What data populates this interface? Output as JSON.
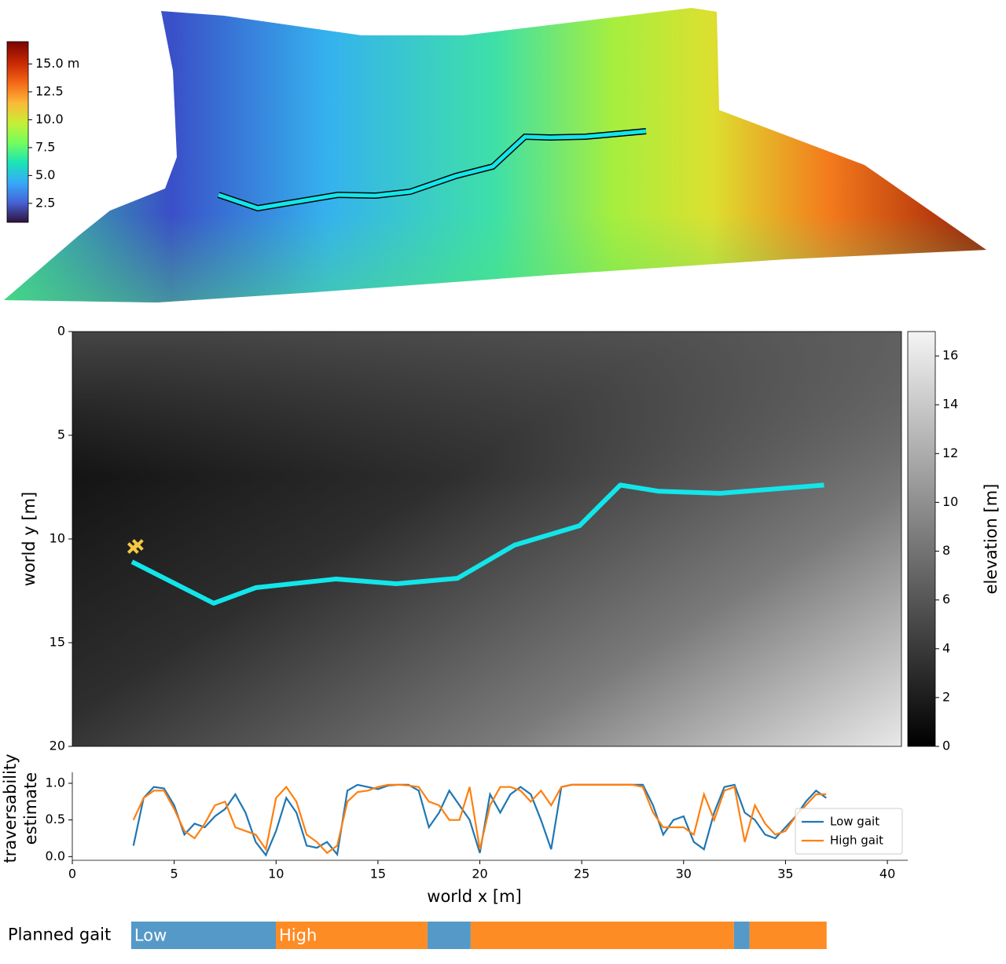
{
  "chart_data": [
    {
      "type": "surface",
      "colorbar": {
        "clim": [
          0.8,
          17
        ],
        "ticks": [
          {
            "value": 15,
            "label": "15.0 m"
          },
          12.5,
          {
            "value": 10,
            "label": "10.0"
          },
          7.5,
          {
            "value": 5,
            "label": "5.0"
          },
          2.5
        ]
      }
    },
    {
      "type": "heatmap",
      "xlim": [
        0,
        40.7
      ],
      "ylim": [
        20,
        0
      ],
      "yticks": [
        0,
        5,
        10,
        15,
        20
      ],
      "ylabel": "world y [m]",
      "path": {
        "color": "#12e6ea",
        "x": [
          2.93,
          6.94,
          9.0,
          12.96,
          15.9,
          18.9,
          21.7,
          24.9,
          26.9,
          28.8,
          31.8,
          36.9
        ],
        "y": [
          11.1,
          13.1,
          12.35,
          11.93,
          12.16,
          11.9,
          10.3,
          9.36,
          7.4,
          7.7,
          7.8,
          7.4
        ]
      },
      "marker": {
        "color": "#f5c842",
        "x": 3.1,
        "y": 10.4
      },
      "colorbar": {
        "label": "elevation [m]",
        "clim": [
          0,
          17
        ],
        "ticks": [
          0,
          2,
          4,
          6,
          8,
          10,
          12,
          14,
          16
        ]
      }
    },
    {
      "type": "line",
      "xlim": [
        0,
        41
      ],
      "ylim": [
        -0.05,
        1.15
      ],
      "xticks": [
        0,
        5,
        10,
        15,
        20,
        25,
        30,
        35,
        40
      ],
      "yticks": [
        {
          "value": 0,
          "label": "0.0"
        },
        0.5,
        {
          "value": 1,
          "label": "1.0"
        }
      ],
      "xlabel": "world x [m]",
      "ylabel": [
        "traversability",
        "estimate"
      ],
      "legend": "lower right",
      "x": [
        3,
        3.5,
        4,
        4.5,
        5,
        5.5,
        6,
        6.5,
        7,
        7.5,
        8,
        8.5,
        9,
        9.5,
        10,
        10.5,
        11,
        11.5,
        12,
        12.5,
        13,
        13.5,
        14,
        14.5,
        15,
        15.5,
        16,
        16.5,
        17,
        17.5,
        18,
        18.5,
        19,
        19.5,
        20,
        20.5,
        21,
        21.5,
        22,
        22.5,
        23,
        23.5,
        24,
        24.5,
        25,
        25.5,
        26,
        26.5,
        27,
        27.5,
        28,
        28.5,
        29,
        29.5,
        30,
        30.5,
        31,
        31.5,
        32,
        32.5,
        33,
        33.5,
        34,
        34.5,
        35,
        35.5,
        36,
        36.5,
        37
      ],
      "series": [
        {
          "name": "Low gait",
          "color": "#1f77b4",
          "values": [
            0.15,
            0.8,
            0.95,
            0.93,
            0.7,
            0.3,
            0.45,
            0.4,
            0.55,
            0.65,
            0.85,
            0.6,
            0.2,
            0.02,
            0.35,
            0.8,
            0.6,
            0.15,
            0.12,
            0.2,
            0.03,
            0.9,
            0.98,
            0.95,
            0.92,
            0.97,
            0.98,
            0.98,
            0.9,
            0.4,
            0.6,
            0.9,
            0.7,
            0.5,
            0.05,
            0.85,
            0.6,
            0.85,
            0.95,
            0.85,
            0.5,
            0.1,
            0.95,
            0.98,
            0.98,
            0.98,
            0.98,
            0.98,
            0.98,
            0.98,
            0.98,
            0.7,
            0.3,
            0.5,
            0.55,
            0.2,
            0.1,
            0.6,
            0.95,
            0.98,
            0.6,
            0.5,
            0.3,
            0.25,
            0.4,
            0.55,
            0.75,
            0.9,
            0.8
          ]
        },
        {
          "name": "High gait",
          "color": "#ff7f0e",
          "values": [
            0.5,
            0.8,
            0.9,
            0.9,
            0.65,
            0.35,
            0.25,
            0.45,
            0.7,
            0.75,
            0.4,
            0.35,
            0.3,
            0.1,
            0.8,
            0.95,
            0.75,
            0.3,
            0.2,
            0.05,
            0.15,
            0.75,
            0.88,
            0.9,
            0.95,
            0.98,
            0.98,
            0.97,
            0.95,
            0.75,
            0.7,
            0.5,
            0.5,
            0.95,
            0.1,
            0.7,
            0.95,
            0.95,
            0.9,
            0.75,
            0.9,
            0.7,
            0.95,
            0.98,
            0.98,
            0.98,
            0.98,
            0.98,
            0.98,
            0.98,
            0.95,
            0.6,
            0.4,
            0.4,
            0.4,
            0.3,
            0.85,
            0.5,
            0.9,
            0.95,
            0.2,
            0.7,
            0.45,
            0.3,
            0.35,
            0.55,
            0.7,
            0.85,
            0.85
          ]
        }
      ]
    },
    {
      "type": "segments",
      "label": "Planned gait",
      "xlim": [
        0,
        41
      ],
      "segments": [
        {
          "start": 2.89,
          "end": 9.99,
          "color": "#5599c8"
        },
        {
          "start": 9.99,
          "end": 17.43,
          "color": "#fd8c25"
        },
        {
          "start": 17.43,
          "end": 19.55,
          "color": "#5599c8"
        },
        {
          "start": 19.55,
          "end": 32.47,
          "color": "#fd8c25"
        },
        {
          "start": 32.47,
          "end": 33.24,
          "color": "#5599c8"
        },
        {
          "start": 33.24,
          "end": 37.02,
          "color": "#fd8c25"
        }
      ],
      "segment_labels": [
        "Low",
        "High"
      ]
    }
  ]
}
